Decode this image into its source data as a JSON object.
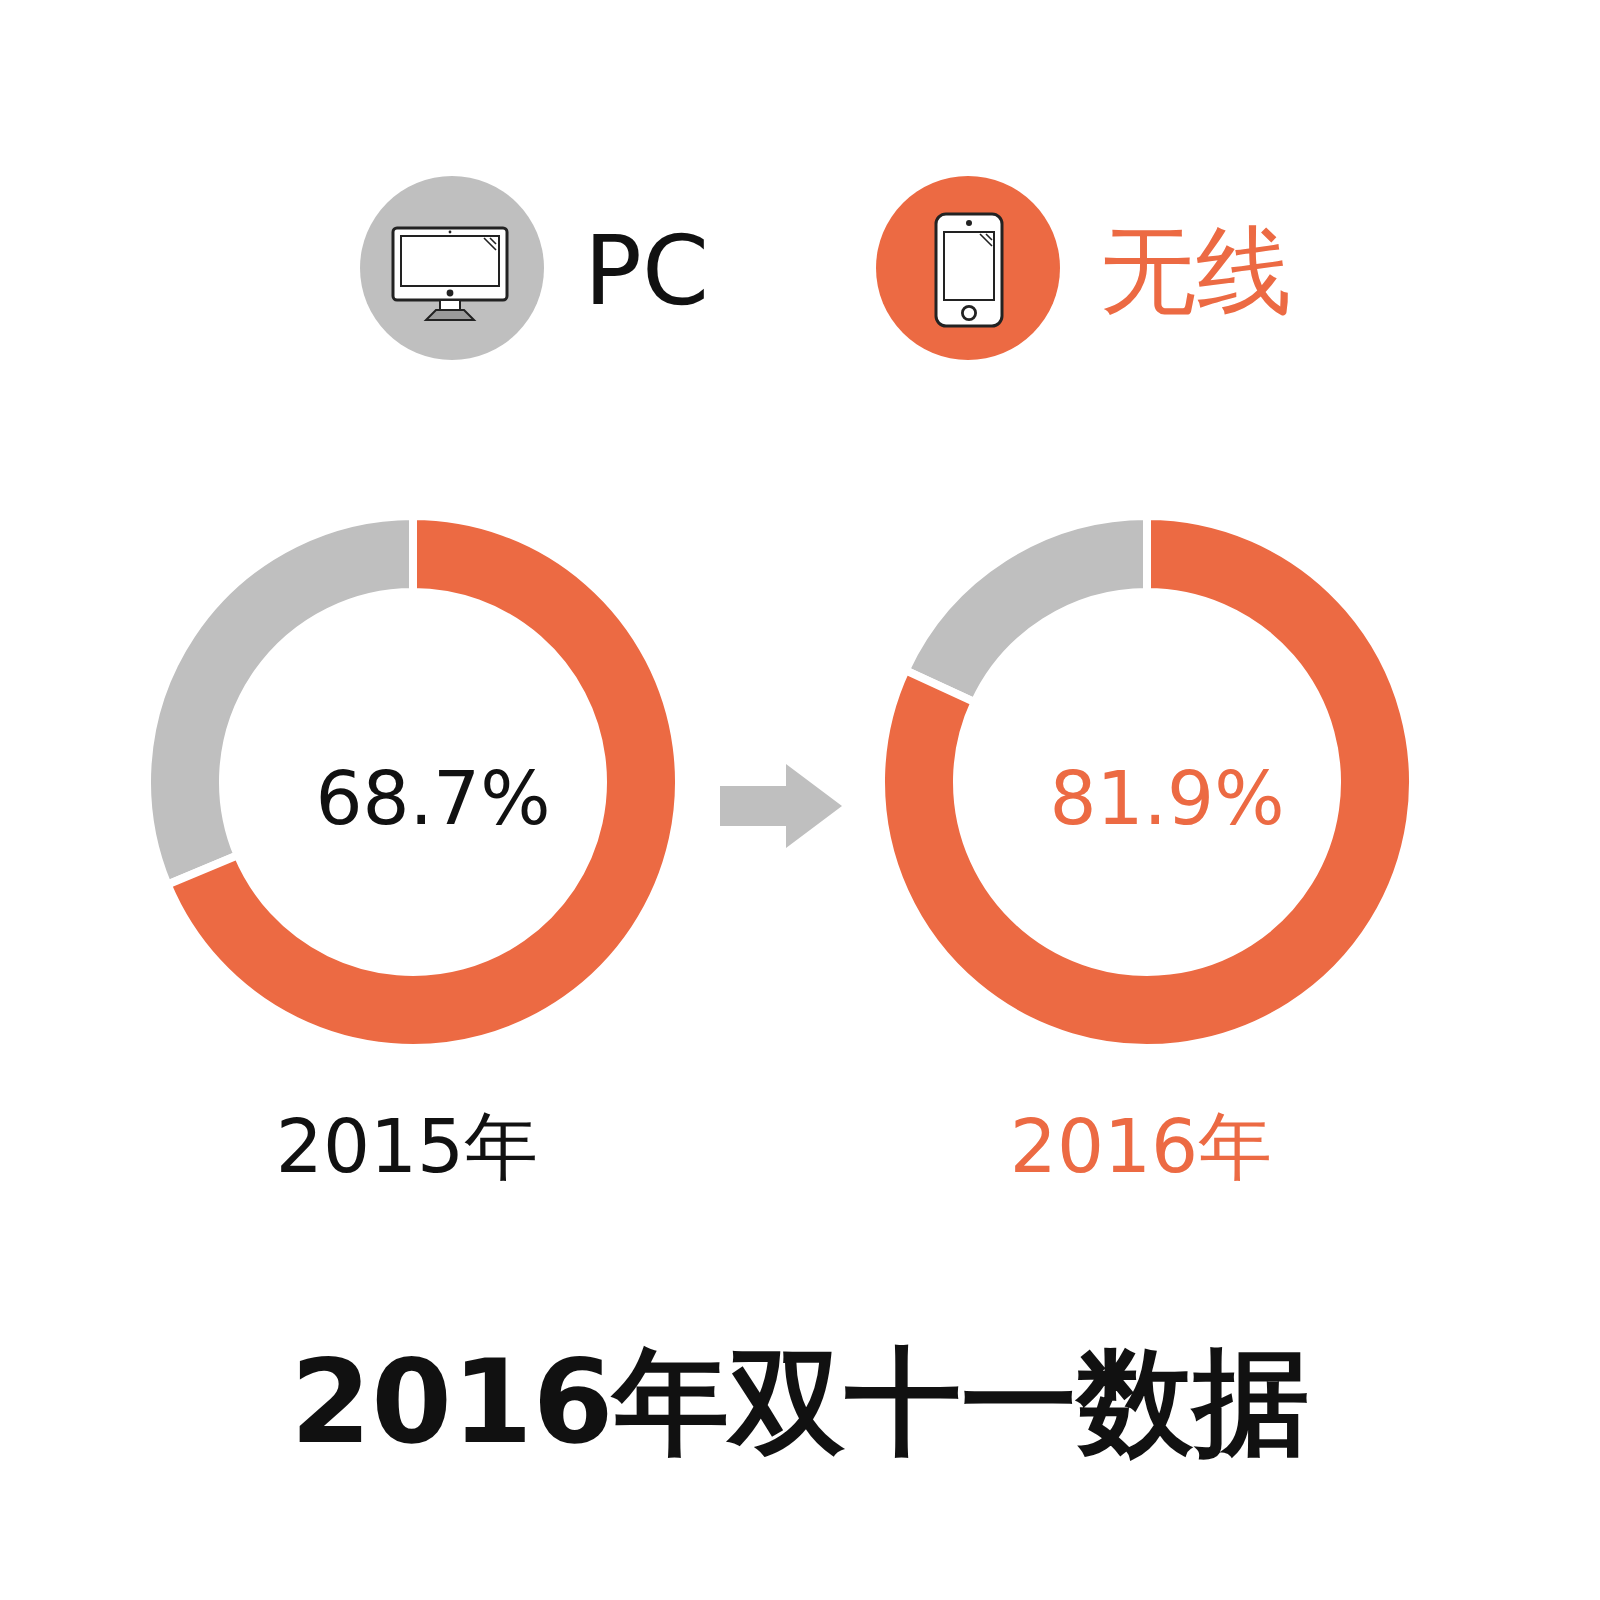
{
  "chart_data": {
    "type": "donut",
    "title": "2016年双十一数据",
    "categories": [
      "PC",
      "无线"
    ],
    "colors": [
      "#bfbfbf",
      "#ec6a43"
    ],
    "legend": "top",
    "series": [
      {
        "name": "2015年",
        "values": [
          31.3,
          68.7
        ],
        "value_labels": [
          null,
          "68.7%"
        ]
      },
      {
        "name": "2016年",
        "values": [
          18.1,
          81.9
        ],
        "value_labels": [
          null,
          "81.9%"
        ]
      }
    ]
  }
}
